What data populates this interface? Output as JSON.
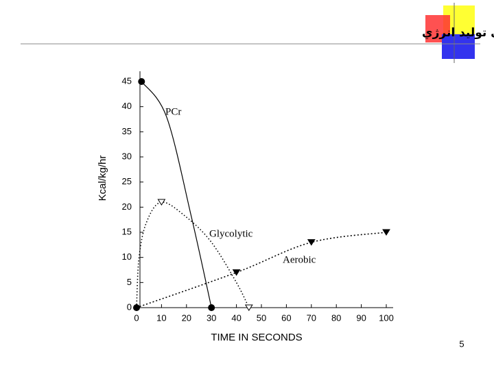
{
  "chart_data": {
    "type": "line",
    "title": "دورة زماني مکـانيزم‌هاي توليد انرژي",
    "x_label": "TIME IN SECONDS",
    "y_label": "Kcal/kg/hr",
    "xlim": [
      0,
      100
    ],
    "xticks": [
      0,
      10,
      20,
      30,
      40,
      50,
      60,
      70,
      80,
      90,
      100
    ],
    "ylim": [
      0,
      45
    ],
    "yticks": [
      0,
      5,
      10,
      15,
      20,
      25,
      30,
      35,
      40,
      45
    ],
    "grid": false,
    "series": [
      {
        "name": "PCr",
        "color": "#000000",
        "dash": "solid",
        "x": [
          2,
          12,
          22,
          30
        ],
        "values": [
          45,
          38,
          18,
          0
        ],
        "markers": [
          "circle",
          null,
          null,
          "circle"
        ]
      },
      {
        "name": "Glycolytic",
        "color": "#000000",
        "dash": "dotted",
        "x": [
          0,
          1,
          4,
          10,
          20,
          30,
          40,
          45
        ],
        "values": [
          0,
          10,
          17,
          21,
          18,
          13,
          5,
          0
        ],
        "markers": [
          null,
          null,
          null,
          "triangle-open",
          null,
          null,
          null,
          "triangle-open"
        ]
      },
      {
        "name": "Aerobic",
        "color": "#000000",
        "dash": "dashed",
        "x": [
          0,
          40,
          70,
          100
        ],
        "values": [
          0,
          7,
          13,
          15
        ],
        "markers": [
          "circle",
          "triangle",
          "triangle",
          "triangle"
        ]
      }
    ]
  },
  "page_number": "5"
}
